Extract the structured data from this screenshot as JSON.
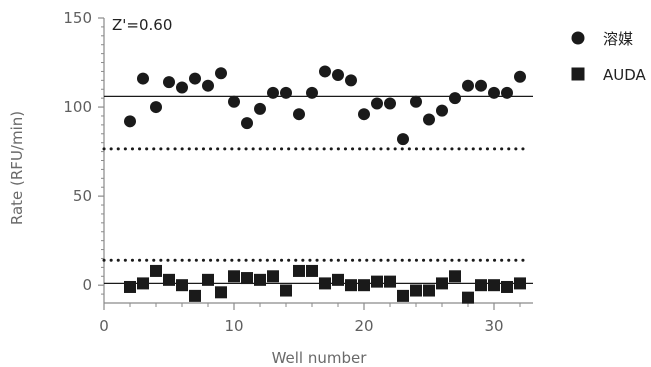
{
  "chart_data": {
    "type": "scatter",
    "annotation": "Z'=0.60",
    "xlabel": "Well number",
    "ylabel": "Rate (RFU/min)",
    "xlim": [
      0,
      33
    ],
    "ylim": [
      -10,
      150
    ],
    "x_ticks": [
      0,
      10,
      20,
      30
    ],
    "y_ticks": [
      0,
      50,
      100,
      150
    ],
    "grid": false,
    "legend_position": "top-right",
    "series": [
      {
        "name": "溶媒",
        "marker": "circle",
        "color": "#1a1a1a",
        "points": [
          [
            2,
            92
          ],
          [
            3,
            116
          ],
          [
            4,
            100
          ],
          [
            5,
            114
          ],
          [
            6,
            111
          ],
          [
            7,
            116
          ],
          [
            8,
            112
          ],
          [
            9,
            119
          ],
          [
            10,
            103
          ],
          [
            11,
            91
          ],
          [
            12,
            99
          ],
          [
            13,
            108
          ],
          [
            14,
            108
          ],
          [
            15,
            96
          ],
          [
            16,
            108
          ],
          [
            17,
            120
          ],
          [
            18,
            118
          ],
          [
            19,
            115
          ],
          [
            20,
            96
          ],
          [
            21,
            102
          ],
          [
            22,
            102
          ],
          [
            23,
            82
          ],
          [
            24,
            103
          ],
          [
            25,
            93
          ],
          [
            26,
            98
          ],
          [
            27,
            105
          ],
          [
            28,
            112
          ],
          [
            29,
            112
          ],
          [
            30,
            108
          ],
          [
            31,
            108
          ],
          [
            32,
            117
          ]
        ]
      },
      {
        "name": "AUDA",
        "marker": "square",
        "color": "#1a1a1a",
        "points": [
          [
            2,
            -1
          ],
          [
            3,
            1
          ],
          [
            4,
            8
          ],
          [
            5,
            3
          ],
          [
            6,
            0
          ],
          [
            7,
            -6
          ],
          [
            8,
            3
          ],
          [
            9,
            -4
          ],
          [
            10,
            5
          ],
          [
            11,
            4
          ],
          [
            12,
            3
          ],
          [
            13,
            5
          ],
          [
            14,
            -3
          ],
          [
            15,
            8
          ],
          [
            16,
            8
          ],
          [
            17,
            1
          ],
          [
            18,
            3
          ],
          [
            19,
            0
          ],
          [
            20,
            0
          ],
          [
            21,
            2
          ],
          [
            22,
            2
          ],
          [
            23,
            -6
          ],
          [
            24,
            -3
          ],
          [
            25,
            -3
          ],
          [
            26,
            1
          ],
          [
            27,
            5
          ],
          [
            28,
            -7
          ],
          [
            29,
            0
          ],
          [
            30,
            0
          ],
          [
            31,
            -1
          ],
          [
            32,
            1
          ]
        ]
      }
    ],
    "reference_lines": [
      {
        "y": 106,
        "style": "solid"
      },
      {
        "y": 1,
        "style": "solid"
      },
      {
        "y": 76.5,
        "style": "dotted"
      },
      {
        "y": 14,
        "style": "dotted"
      }
    ]
  }
}
